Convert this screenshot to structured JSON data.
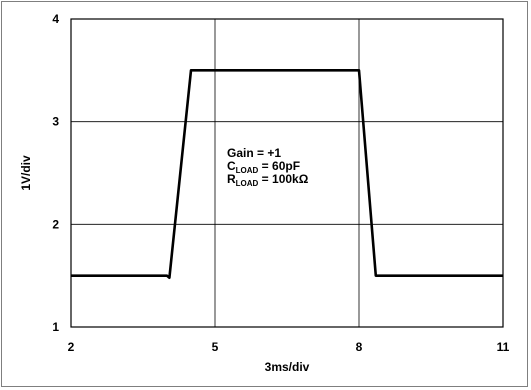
{
  "chart_data": {
    "type": "line",
    "x_ticks": [
      "2",
      "5",
      "8",
      "11"
    ],
    "y_ticks": [
      "1",
      "2",
      "3",
      "4"
    ],
    "xlim": [
      2,
      11
    ],
    "ylim": [
      1,
      4
    ],
    "xlabel": "3ms/div",
    "ylabel": "1V/div",
    "grid": true,
    "series": [
      {
        "x": [
          2.0,
          4.0,
          4.05,
          4.5,
          7.9,
          8.0,
          8.35,
          11.0
        ],
        "y": [
          1.5,
          1.5,
          1.48,
          3.5,
          3.5,
          3.5,
          1.5,
          1.5
        ]
      }
    ],
    "annotations": [
      {
        "main": "Gain = +1",
        "sub": "",
        "suffix": ""
      },
      {
        "main": "C",
        "sub": "LOAD",
        "suffix": " = 60pF"
      },
      {
        "main": "R",
        "sub": "LOAD",
        "suffix": " = 100kΩ"
      }
    ]
  }
}
